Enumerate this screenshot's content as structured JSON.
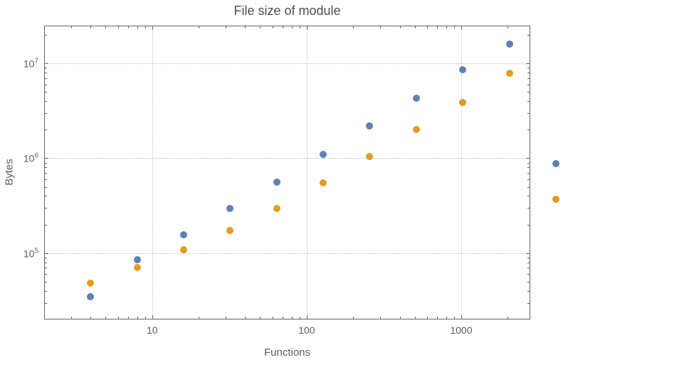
{
  "figure": {
    "background": "#ffffff"
  },
  "chart_data": {
    "type": "scatter",
    "title": "File size of module",
    "xlabel": "Functions",
    "ylabel": "Bytes",
    "x_scale": "log",
    "y_scale": "log",
    "xlim": [
      2,
      2800
    ],
    "ylim": [
      20000,
      25000000
    ],
    "grid": "dotted-major",
    "legend": "none",
    "x_ticks": {
      "values": [
        10,
        100,
        1000
      ],
      "labels": [
        "10",
        "100",
        "1000"
      ]
    },
    "y_ticks": {
      "values": [
        100000,
        1000000,
        10000000
      ],
      "base": "10",
      "exponents": [
        "5",
        "6",
        "7"
      ]
    },
    "x": [
      4,
      8,
      16,
      32,
      64,
      128,
      256,
      512,
      1024,
      2048,
      4096
    ],
    "series": [
      {
        "name": "series-blue",
        "color": "#5e81b5",
        "values": [
          35000,
          85000,
          155000,
          295000,
          560000,
          1100000,
          2200000,
          4300000,
          8500000,
          16000000,
          880000
        ]
      },
      {
        "name": "series-orange",
        "color": "#e19c24",
        "values": [
          48000,
          70000,
          108000,
          172000,
          295000,
          550000,
          1050000,
          2000000,
          3900000,
          7800000,
          370000
        ]
      }
    ],
    "colors": {
      "frame": "#646464",
      "grid": "#bdbdbd",
      "tick_label": "#5e5e5e",
      "title": "#4d4d4d",
      "axis_label": "#5e5e5e"
    }
  }
}
